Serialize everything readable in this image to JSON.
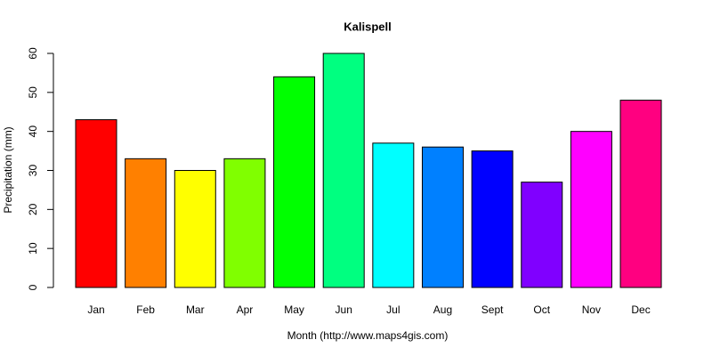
{
  "chart_data": {
    "type": "bar",
    "title": "Kalispell",
    "x_label": "Month (http://www.maps4gis.com)",
    "y_label": "Precipitation (mm)",
    "categories": [
      "Jan",
      "Feb",
      "Mar",
      "Apr",
      "May",
      "Jun",
      "Jul",
      "Aug",
      "Sept",
      "Oct",
      "Nov",
      "Dec"
    ],
    "values": [
      43,
      33,
      30,
      33,
      54,
      60,
      37,
      36,
      35,
      27,
      40,
      48
    ],
    "colors": [
      "#FF0000",
      "#FF8000",
      "#FFFF00",
      "#80FF00",
      "#00FF00",
      "#00FF80",
      "#00FFFF",
      "#0080FF",
      "#0000FF",
      "#8000FF",
      "#FF00FF",
      "#FF0080"
    ],
    "ylim": [
      0,
      60
    ],
    "yticks": [
      0,
      10,
      20,
      30,
      40,
      50,
      60
    ],
    "grid": false
  }
}
